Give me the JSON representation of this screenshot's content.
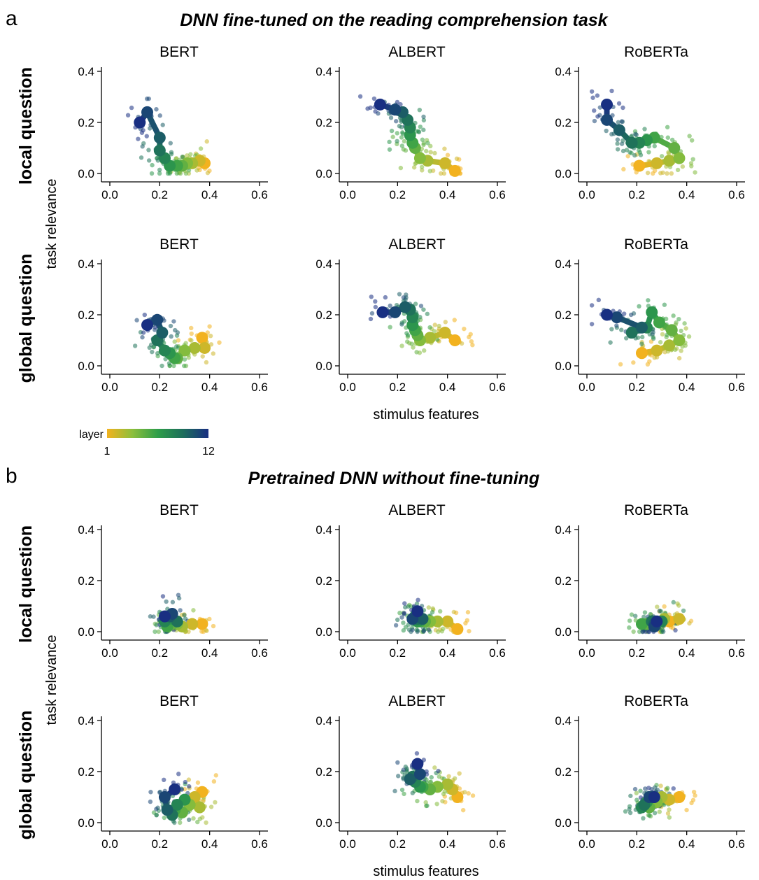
{
  "figure": {
    "section_a": {
      "letter": "a",
      "title": "DNN fine-tuned on the reading comprehension task"
    },
    "section_b": {
      "letter": "b",
      "title": "Pretrained DNN without fine-tuning"
    },
    "row_labels": [
      "local question",
      "global question"
    ],
    "ylabel": "task relevance",
    "xlabel": "stimulus features",
    "colorbar": {
      "label": "layer",
      "min_label": "1",
      "max_label": "12",
      "colors": [
        "#f2b21f",
        "#8cbf3c",
        "#2f9e4a",
        "#1d6e5c",
        "#192f82"
      ]
    },
    "model_names": [
      "BERT",
      "ALBERT",
      "RoBERTa"
    ],
    "x_ticks": [
      "0.0",
      "0.2",
      "0.4",
      "0.6"
    ],
    "y_ticks": [
      "0.0",
      "0.2",
      "0.4"
    ]
  },
  "chart_data": [
    {
      "type": "scatter",
      "section": "a",
      "title": "BERT",
      "row": "local question",
      "xlim": [
        0,
        0.6
      ],
      "ylim": [
        0,
        0.4
      ],
      "layer_x": [
        0.38,
        0.36,
        0.33,
        0.31,
        0.29,
        0.27,
        0.24,
        0.22,
        0.2,
        0.2,
        0.15,
        0.12
      ],
      "layer_y": [
        0.04,
        0.05,
        0.04,
        0.04,
        0.03,
        0.03,
        0.03,
        0.06,
        0.09,
        0.14,
        0.24,
        0.2
      ]
    },
    {
      "type": "scatter",
      "section": "a",
      "title": "ALBERT",
      "row": "local question",
      "xlim": [
        0,
        0.6
      ],
      "ylim": [
        0,
        0.4
      ],
      "layer_x": [
        0.43,
        0.39,
        0.32,
        0.29,
        0.27,
        0.26,
        0.25,
        0.25,
        0.24,
        0.22,
        0.19,
        0.13
      ],
      "layer_y": [
        0.01,
        0.04,
        0.05,
        0.06,
        0.1,
        0.12,
        0.15,
        0.18,
        0.21,
        0.24,
        0.25,
        0.27
      ]
    },
    {
      "type": "scatter",
      "section": "a",
      "title": "RoBERTa",
      "row": "local question",
      "xlim": [
        0,
        0.6
      ],
      "ylim": [
        0,
        0.4
      ],
      "layer_x": [
        0.21,
        0.28,
        0.33,
        0.37,
        0.35,
        0.27,
        0.24,
        0.21,
        0.18,
        0.13,
        0.08,
        0.08
      ],
      "layer_y": [
        0.03,
        0.04,
        0.05,
        0.06,
        0.1,
        0.14,
        0.13,
        0.12,
        0.12,
        0.17,
        0.21,
        0.27
      ]
    },
    {
      "type": "scatter",
      "section": "a",
      "title": "BERT",
      "row": "global question",
      "xlim": [
        0,
        0.6
      ],
      "ylim": [
        0,
        0.4
      ],
      "layer_x": [
        0.37,
        0.38,
        0.34,
        0.3,
        0.27,
        0.26,
        0.24,
        0.22,
        0.19,
        0.21,
        0.19,
        0.15
      ],
      "layer_y": [
        0.11,
        0.07,
        0.07,
        0.06,
        0.03,
        0.03,
        0.05,
        0.06,
        0.1,
        0.13,
        0.18,
        0.16
      ]
    },
    {
      "type": "scatter",
      "section": "a",
      "title": "ALBERT",
      "row": "global question",
      "xlim": [
        0,
        0.6
      ],
      "ylim": [
        0,
        0.4
      ],
      "layer_x": [
        0.43,
        0.39,
        0.33,
        0.29,
        0.28,
        0.27,
        0.26,
        0.26,
        0.25,
        0.23,
        0.19,
        0.14
      ],
      "layer_y": [
        0.1,
        0.13,
        0.11,
        0.1,
        0.12,
        0.14,
        0.16,
        0.19,
        0.22,
        0.23,
        0.21,
        0.21
      ]
    },
    {
      "type": "scatter",
      "section": "a",
      "title": "RoBERTa",
      "row": "global question",
      "xlim": [
        0,
        0.6
      ],
      "ylim": [
        0,
        0.4
      ],
      "layer_x": [
        0.22,
        0.28,
        0.33,
        0.37,
        0.34,
        0.29,
        0.26,
        0.24,
        0.18,
        0.22,
        0.12,
        0.08
      ],
      "layer_y": [
        0.05,
        0.06,
        0.08,
        0.1,
        0.14,
        0.17,
        0.21,
        0.15,
        0.13,
        0.15,
        0.19,
        0.2
      ]
    },
    {
      "type": "scatter",
      "section": "b",
      "title": "BERT",
      "row": "local question",
      "xlim": [
        0,
        0.6
      ],
      "ylim": [
        0,
        0.4
      ],
      "layer_x": [
        0.37,
        0.33,
        0.29,
        0.27,
        0.25,
        0.23,
        0.25,
        0.22,
        0.27,
        0.24,
        0.25,
        0.22
      ],
      "layer_y": [
        0.03,
        0.03,
        0.02,
        0.03,
        0.03,
        0.02,
        0.05,
        0.04,
        0.04,
        0.06,
        0.07,
        0.06
      ]
    },
    {
      "type": "scatter",
      "section": "b",
      "title": "ALBERT",
      "row": "local question",
      "xlim": [
        0,
        0.6
      ],
      "ylim": [
        0,
        0.4
      ],
      "layer_x": [
        0.44,
        0.4,
        0.36,
        0.33,
        0.31,
        0.29,
        0.28,
        0.27,
        0.28,
        0.3,
        0.26,
        0.28
      ],
      "layer_y": [
        0.01,
        0.04,
        0.04,
        0.04,
        0.04,
        0.04,
        0.04,
        0.06,
        0.05,
        0.05,
        0.05,
        0.08
      ]
    },
    {
      "type": "scatter",
      "section": "b",
      "title": "RoBERTa",
      "row": "local question",
      "xlim": [
        0,
        0.6
      ],
      "ylim": [
        0,
        0.4
      ],
      "layer_x": [
        0.33,
        0.37,
        0.31,
        0.28,
        0.24,
        0.22,
        0.27,
        0.3,
        0.26,
        0.27,
        0.27,
        0.28
      ],
      "layer_y": [
        0.04,
        0.05,
        0.05,
        0.04,
        0.03,
        0.03,
        0.04,
        0.04,
        0.04,
        0.03,
        0.02,
        0.04
      ]
    },
    {
      "type": "scatter",
      "section": "b",
      "title": "BERT",
      "row": "global question",
      "xlim": [
        0,
        0.6
      ],
      "ylim": [
        0,
        0.4
      ],
      "layer_x": [
        0.37,
        0.34,
        0.36,
        0.32,
        0.29,
        0.26,
        0.3,
        0.27,
        0.25,
        0.23,
        0.22,
        0.26
      ],
      "layer_y": [
        0.12,
        0.1,
        0.06,
        0.07,
        0.04,
        0.05,
        0.09,
        0.07,
        0.03,
        0.05,
        0.1,
        0.13
      ]
    },
    {
      "type": "scatter",
      "section": "b",
      "title": "ALBERT",
      "row": "global question",
      "xlim": [
        0,
        0.6
      ],
      "ylim": [
        0,
        0.4
      ],
      "layer_x": [
        0.44,
        0.42,
        0.4,
        0.36,
        0.33,
        0.3,
        0.29,
        0.27,
        0.26,
        0.25,
        0.29,
        0.28
      ],
      "layer_y": [
        0.1,
        0.13,
        0.15,
        0.14,
        0.13,
        0.14,
        0.14,
        0.16,
        0.18,
        0.17,
        0.19,
        0.23
      ]
    },
    {
      "type": "scatter",
      "section": "b",
      "title": "RoBERTa",
      "row": "global question",
      "xlim": [
        0,
        0.6
      ],
      "ylim": [
        0,
        0.4
      ],
      "layer_x": [
        0.37,
        0.33,
        0.3,
        0.28,
        0.25,
        0.27,
        0.24,
        0.22,
        0.23,
        0.26,
        0.25,
        0.27
      ],
      "layer_y": [
        0.1,
        0.09,
        0.1,
        0.08,
        0.06,
        0.1,
        0.08,
        0.06,
        0.07,
        0.1,
        0.1,
        0.1
      ]
    }
  ]
}
